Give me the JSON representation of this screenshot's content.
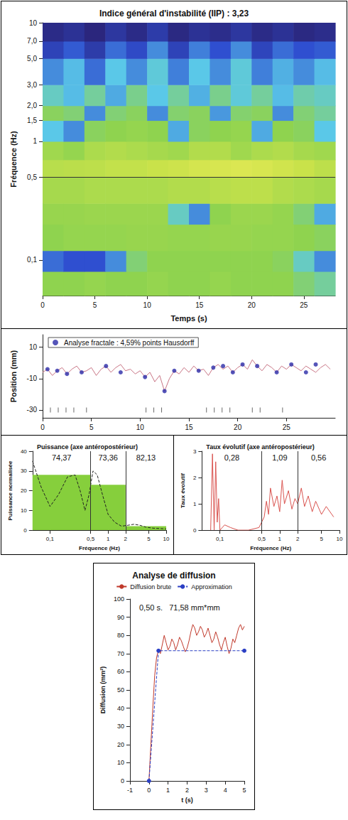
{
  "chart_data": [
    {
      "type": "heatmap",
      "title": "Indice général d'instabilité (IIP) : 3,23",
      "x_label": "Temps (s)",
      "y_label": "Fréquence (Hz)",
      "log": "y",
      "grid": false,
      "xlim": [
        0,
        28
      ],
      "xticks": [
        0,
        5,
        10,
        15,
        20,
        25
      ],
      "ylim": [
        0.05,
        10
      ],
      "yticks": [
        {
          "value": 0.1,
          "label": "0,1"
        },
        {
          "value": 0.5,
          "label": "0,5"
        },
        1,
        {
          "value": 1.5,
          "label": "1,5"
        },
        {
          "value": 2,
          "label": "2,0"
        },
        {
          "value": 3,
          "label": "3,0"
        },
        {
          "value": 5,
          "label": "5,0"
        },
        {
          "value": 7,
          "label": "7,0"
        },
        10
      ],
      "x_edges": [
        0,
        2,
        4,
        6,
        8,
        10,
        12,
        14,
        16,
        18,
        20,
        22,
        24,
        26,
        28
      ],
      "y_edges": [
        0.05,
        0.08,
        0.12,
        0.2,
        0.3,
        0.5,
        0.7,
        1,
        1.5,
        2,
        3,
        5,
        7,
        10
      ],
      "cells": [
        [
          0.6,
          0.6,
          0.62,
          0.6,
          0.6,
          0.62,
          0.6,
          0.6,
          0.62,
          0.6,
          0.6,
          0.6,
          0.55,
          0.5
        ],
        [
          0.25,
          0.2,
          0.2,
          0.3,
          0.55,
          0.6,
          0.6,
          0.6,
          0.6,
          0.6,
          0.6,
          0.58,
          0.45,
          0.3
        ],
        [
          0.6,
          0.62,
          0.62,
          0.62,
          0.63,
          0.63,
          0.62,
          0.62,
          0.63,
          0.63,
          0.62,
          0.62,
          0.6,
          0.58
        ],
        [
          0.63,
          0.63,
          0.64,
          0.64,
          0.64,
          0.64,
          0.45,
          0.3,
          0.6,
          0.64,
          0.64,
          0.62,
          0.55,
          0.35
        ],
        [
          0.68,
          0.68,
          0.7,
          0.7,
          0.7,
          0.7,
          0.72,
          0.72,
          0.74,
          0.76,
          0.76,
          0.72,
          0.7,
          0.68
        ],
        [
          0.74,
          0.75,
          0.76,
          0.78,
          0.78,
          0.8,
          0.82,
          0.86,
          0.88,
          0.9,
          0.88,
          0.84,
          0.8,
          0.76
        ],
        [
          0.66,
          0.62,
          0.7,
          0.72,
          0.7,
          0.68,
          0.66,
          0.72,
          0.72,
          0.66,
          0.7,
          0.72,
          0.68,
          0.66
        ],
        [
          0.4,
          0.3,
          0.58,
          0.6,
          0.62,
          0.6,
          0.35,
          0.58,
          0.6,
          0.62,
          0.35,
          0.6,
          0.58,
          0.4
        ],
        [
          0.58,
          0.55,
          0.3,
          0.55,
          0.58,
          0.3,
          0.56,
          0.58,
          0.32,
          0.56,
          0.58,
          0.3,
          0.55,
          0.5
        ],
        [
          0.45,
          0.38,
          0.5,
          0.35,
          0.52,
          0.4,
          0.5,
          0.36,
          0.52,
          0.42,
          0.5,
          0.38,
          0.48,
          0.45
        ],
        [
          0.3,
          0.38,
          0.25,
          0.4,
          0.3,
          0.42,
          0.28,
          0.4,
          0.3,
          0.42,
          0.28,
          0.36,
          0.3,
          0.38
        ],
        [
          0.15,
          0.22,
          0.12,
          0.25,
          0.18,
          0.3,
          0.15,
          0.28,
          0.2,
          0.3,
          0.16,
          0.25,
          0.2,
          0.22
        ],
        [
          0.05,
          0.08,
          0.03,
          0.1,
          0.05,
          0.12,
          0.04,
          0.08,
          0.06,
          0.1,
          0.05,
          0.08,
          0.04,
          0.06
        ]
      ],
      "color_range": [
        0,
        1
      ],
      "reference_line": 0.5
    },
    {
      "type": "line",
      "y_label": "Position (mm)",
      "grid": false,
      "legend": "upper left",
      "xlim": [
        0,
        30
      ],
      "xticks": [
        0,
        5,
        10,
        15,
        20,
        25
      ],
      "ylim": [
        -35,
        18
      ],
      "yticks": [
        -30,
        -10,
        10
      ],
      "x": [
        0,
        0.5,
        1,
        1.5,
        2,
        2.5,
        3,
        3.5,
        4,
        4.5,
        5,
        5.5,
        6,
        6.5,
        7,
        7.5,
        8,
        8.5,
        9,
        9.5,
        10,
        10.5,
        11,
        11.5,
        12,
        12.5,
        13,
        13.5,
        14,
        14.5,
        15,
        15.5,
        16,
        16.5,
        17,
        17.5,
        18,
        18.5,
        19,
        19.5,
        20,
        20.5,
        21,
        21.5,
        22,
        22.5,
        23,
        23.5,
        24,
        24.5,
        25,
        25.5,
        26,
        26.5,
        27,
        27.5,
        28,
        28.5,
        29,
        29.5
      ],
      "series": [
        {
          "type": "line",
          "marker": "none",
          "color": "#c87585",
          "values": [
            -6,
            -4,
            -8,
            -5,
            -3,
            -7,
            -4,
            -2,
            -6,
            -5,
            -3,
            -8,
            -4,
            -2,
            -6,
            -3,
            -1,
            -5,
            -4,
            -7,
            -5,
            -9,
            -6,
            -12,
            -8,
            -18,
            -10,
            -5,
            -7,
            -3,
            -6,
            -2,
            -5,
            -4,
            -8,
            -3,
            -1,
            -4,
            -2,
            -6,
            -3,
            -1,
            -4,
            2,
            -2,
            -5,
            -1,
            -3,
            -6,
            -2,
            -4,
            -1,
            -3,
            -5,
            -2,
            -4,
            -6,
            -3,
            -1,
            -4
          ]
        },
        {
          "type": "scatter",
          "name": "Analyse fractale : 4,59% points Hausdorff",
          "marker": "circle",
          "color": "#2a2aa8",
          "x": [
            0.5,
            1.5,
            2.5,
            4,
            6.5,
            8,
            10.5,
            12.5,
            13.5,
            16,
            17.5,
            18.5,
            19.5,
            20.5,
            22,
            24,
            25.5,
            27,
            28
          ],
          "values": [
            -4,
            -5,
            -7,
            -6,
            -2,
            -6,
            -9,
            -18,
            -5,
            -5,
            -3,
            -2,
            -6,
            -1,
            -2,
            -6,
            -1,
            -6,
            -1
          ]
        },
        {
          "type": "scatter",
          "marker": "tick",
          "color": "#444444",
          "x": [
            0.8,
            1.6,
            2.4,
            3.2,
            4.5,
            10.6,
            11.4,
            12.2,
            16.8,
            17.6,
            18.4,
            19.2,
            21.5,
            22.3,
            24.6
          ],
          "values": [
            -30,
            -30,
            -30,
            -30,
            -30,
            -30,
            -30,
            -30,
            -30,
            -30,
            -30,
            -30,
            -30,
            -30,
            -30
          ]
        }
      ]
    },
    {
      "type": "bar",
      "title": "Puissance (axe antéropostérieur)",
      "x_label": "Fréquence (Hz)",
      "y_label": "Puissance normalisée",
      "log": "x",
      "grid": false,
      "xlim": [
        0.05,
        10
      ],
      "xticks": [
        {
          "value": 0.1,
          "label": "0,1"
        },
        {
          "value": 0.5,
          "label": "0,5"
        },
        1,
        2,
        5,
        10
      ],
      "ylim": [
        0,
        40
      ],
      "yticks": [
        0,
        10,
        20,
        30,
        40
      ],
      "annotations": [
        {
          "value": 74.37,
          "label": "74,37"
        },
        {
          "value": 73.36,
          "label": "73,36"
        },
        {
          "value": 82.13,
          "label": "82,13"
        }
      ],
      "series": [
        {
          "type": "bar",
          "color": "#86cf3c",
          "bins": [
            0.05,
            0.5,
            2,
            10
          ],
          "values": [
            28,
            23,
            2
          ]
        },
        {
          "type": "line",
          "marker": "none",
          "line_style": "dashed",
          "color": "#222222",
          "x": [
            0.05,
            0.07,
            0.1,
            0.14,
            0.2,
            0.27,
            0.33,
            0.4,
            0.47,
            0.55,
            0.65,
            0.8,
            1,
            1.3,
            1.7,
            2.2,
            2.8,
            3.5,
            4.5,
            6,
            8,
            10
          ],
          "values": [
            35,
            22,
            12,
            18,
            27,
            28,
            20,
            10,
            18,
            30,
            28,
            18,
            8,
            4,
            2,
            2.5,
            3,
            2.5,
            1.5,
            1,
            0.8,
            0.6
          ]
        }
      ]
    },
    {
      "type": "line",
      "title": "Taux évolutif (axe antéropostérieur)",
      "x_label": "Fréquence (Hz)",
      "y_label": "Taux évolutif",
      "log": "x",
      "grid": false,
      "xlim": [
        0.05,
        10
      ],
      "xticks": [
        {
          "value": 0.1,
          "label": "0,1"
        },
        {
          "value": 0.5,
          "label": "0,5"
        },
        1,
        2,
        5,
        10
      ],
      "ylim": [
        0,
        3
      ],
      "yticks": [
        0,
        1,
        2,
        3
      ],
      "bins": [
        0.05,
        0.5,
        2,
        10
      ],
      "annotations": [
        {
          "value": 0.28,
          "label": "0,28"
        },
        {
          "value": 1.09,
          "label": "1,09"
        },
        {
          "value": 0.56,
          "label": "0,56"
        }
      ],
      "series": [
        {
          "type": "line",
          "marker": "none",
          "color": "#d9534f",
          "x": [
            0.07,
            0.075,
            0.08,
            0.085,
            0.09,
            0.095,
            0.1,
            0.12,
            0.15,
            0.2,
            0.3,
            0.45,
            0.55,
            0.6,
            0.65,
            0.7,
            0.8,
            0.9,
            1,
            1.1,
            1.2,
            1.4,
            1.6,
            1.8,
            2,
            2.3,
            2.6,
            3,
            3.5,
            4,
            5,
            6,
            8
          ],
          "values": [
            0,
            2.9,
            0,
            2.6,
            0.3,
            1.2,
            0,
            0.2,
            0.1,
            0,
            0,
            0.1,
            0.5,
            1.1,
            0.6,
            1.6,
            0.9,
            1.3,
            0.7,
            1.9,
            1.0,
            1.5,
            0.8,
            1.2,
            1.0,
            1.6,
            0.9,
            1.3,
            0.7,
            1.1,
            0.6,
            0.9,
            0.5
          ]
        }
      ]
    },
    {
      "type": "line",
      "title": "Analyse de diffusion",
      "x_label": "t (s)",
      "y_label": "Diffusion (mm²)",
      "grid": false,
      "legend": "top",
      "annotation": "0,50 s.   71,58 mm*mm",
      "xlim": [
        -1,
        5
      ],
      "xticks": [
        -1,
        0,
        1,
        2,
        3,
        4,
        5
      ],
      "ylim": [
        0,
        100
      ],
      "yticks": [
        0,
        10,
        20,
        30,
        40,
        50,
        60,
        70,
        80,
        90,
        100
      ],
      "series": [
        {
          "type": "line",
          "name": "Diffusion brute",
          "marker": "none",
          "color": "#c0392b",
          "x": [
            0,
            0.1,
            0.2,
            0.3,
            0.4,
            0.5,
            0.6,
            0.7,
            0.8,
            0.9,
            1,
            1.1,
            1.2,
            1.3,
            1.4,
            1.5,
            1.6,
            1.7,
            1.8,
            1.9,
            2,
            2.1,
            2.2,
            2.3,
            2.4,
            2.5,
            2.6,
            2.7,
            2.8,
            2.9,
            3,
            3.1,
            3.2,
            3.3,
            3.4,
            3.5,
            3.6,
            3.7,
            3.8,
            3.9,
            4,
            4.1,
            4.2,
            4.3,
            4.4,
            4.5,
            4.6,
            4.7,
            4.8,
            4.9,
            5
          ],
          "values": [
            0,
            20,
            40,
            58,
            68,
            72,
            70,
            75,
            80,
            76,
            72,
            74,
            78,
            76,
            72,
            75,
            79,
            77,
            74,
            71,
            73,
            77,
            82,
            86,
            84,
            80,
            82,
            85,
            83,
            79,
            81,
            84,
            80,
            76,
            78,
            82,
            79,
            75,
            72,
            76,
            79,
            74,
            70,
            73,
            78,
            76,
            80,
            84,
            86,
            83,
            85
          ]
        },
        {
          "type": "line",
          "name": "Approximation",
          "marker": "circle",
          "line_style": "dashed",
          "color": "#2b3fc4",
          "x": [
            0,
            0.5,
            5
          ],
          "values": [
            0,
            71.58,
            71.58
          ]
        }
      ]
    }
  ]
}
